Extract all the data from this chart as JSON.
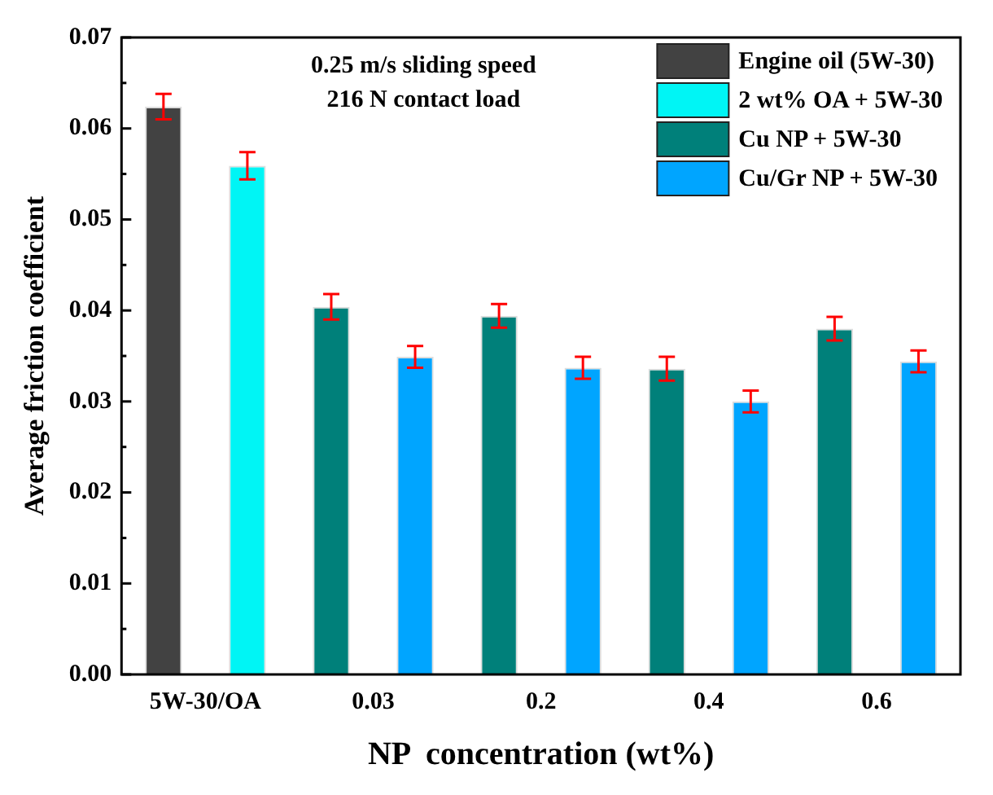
{
  "chart_data": {
    "type": "bar",
    "xlabel": "NP  concentration (wt%)",
    "ylabel": "Average friction coefficient",
    "categories": [
      "5W-30/OA",
      "0.03",
      "0.2",
      "0.4",
      "0.6"
    ],
    "series": [
      {
        "name": "Engine oil (5W-30)",
        "color": "#424242",
        "values": [
          0.0624,
          null,
          null,
          null,
          null
        ],
        "errors": [
          0.0014,
          null,
          null,
          null,
          null
        ]
      },
      {
        "name": "2 wt% OA + 5W-30",
        "color": "#00f5f5",
        "values": [
          0.0559,
          null,
          null,
          null,
          null
        ],
        "errors": [
          0.0015,
          null,
          null,
          null,
          null
        ]
      },
      {
        "name": "Cu NP + 5W-30",
        "color": "#00807a",
        "values": [
          null,
          0.0404,
          0.0394,
          0.0336,
          0.038
        ],
        "errors": [
          null,
          0.0014,
          0.0013,
          0.0013,
          0.0013
        ]
      },
      {
        "name": "Cu/Gr NP + 5W-30",
        "color": "#00a5ff",
        "values": [
          null,
          0.0349,
          0.0337,
          0.03,
          0.0344
        ],
        "errors": [
          null,
          0.0012,
          0.0012,
          0.0012,
          0.0012
        ]
      }
    ],
    "ylim": [
      0,
      0.07
    ],
    "yticks": [
      {
        "value": 0,
        "label": "0.00"
      },
      {
        "value": 0.005,
        "label": null
      },
      {
        "value": 0.01,
        "label": "0.01"
      },
      {
        "value": 0.015,
        "label": null
      },
      {
        "value": 0.02,
        "label": "0.02"
      },
      {
        "value": 0.025,
        "label": null
      },
      {
        "value": 0.03,
        "label": "0.03"
      },
      {
        "value": 0.035,
        "label": null
      },
      {
        "value": 0.04,
        "label": "0.04"
      },
      {
        "value": 0.045,
        "label": null
      },
      {
        "value": 0.05,
        "label": "0.05"
      },
      {
        "value": 0.055,
        "label": null
      },
      {
        "value": 0.06,
        "label": "0.06"
      },
      {
        "value": 0.065,
        "label": null
      },
      {
        "value": 0.07,
        "label": "0.07"
      }
    ],
    "annotations": [
      "0.25 m/s sliding speed",
      "216 N contact load"
    ],
    "grid": false,
    "legend": "top right"
  }
}
